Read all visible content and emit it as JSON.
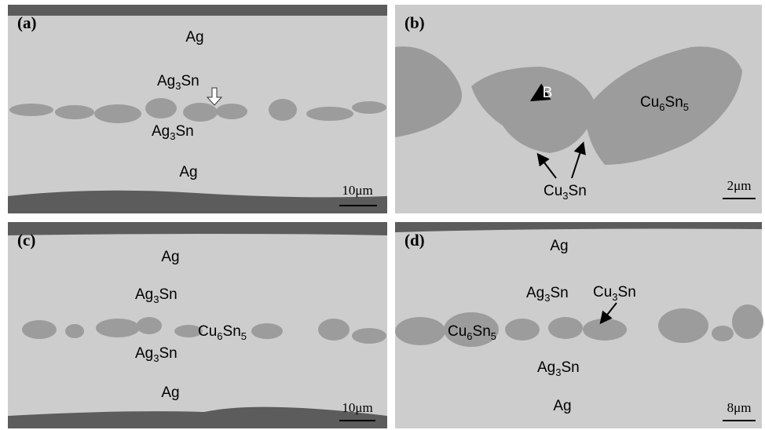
{
  "panels": [
    {
      "label": "(a)",
      "annotations": [
        [
          "Ag"
        ],
        [
          "Ag",
          "3",
          "Sn"
        ],
        [
          "Ag",
          "3",
          "Sn"
        ],
        [
          "Ag"
        ]
      ],
      "scale_bar": "10μm"
    },
    {
      "label": "(b)",
      "annotations": [
        [
          "B"
        ],
        [
          "Cu",
          "6",
          "Sn",
          "5"
        ],
        [
          "Cu",
          "3",
          "Sn"
        ]
      ],
      "scale_bar": "2μm"
    },
    {
      "label": "(c)",
      "annotations": [
        [
          "Ag"
        ],
        [
          "Ag",
          "3",
          "Sn"
        ],
        [
          "Cu",
          "6",
          "Sn",
          "5"
        ],
        [
          "Ag",
          "3",
          "Sn"
        ],
        [
          "Ag"
        ]
      ],
      "scale_bar": "10μm"
    },
    {
      "label": "(d)",
      "annotations": [
        [
          "Ag"
        ],
        [
          "Ag",
          "3",
          "Sn"
        ],
        [
          "Cu",
          "3",
          "Sn"
        ],
        [
          "Cu",
          "6",
          "Sn",
          "5"
        ],
        [
          "Ag",
          "3",
          "Sn"
        ],
        [
          "Ag"
        ]
      ],
      "scale_bar": "8μm"
    }
  ]
}
